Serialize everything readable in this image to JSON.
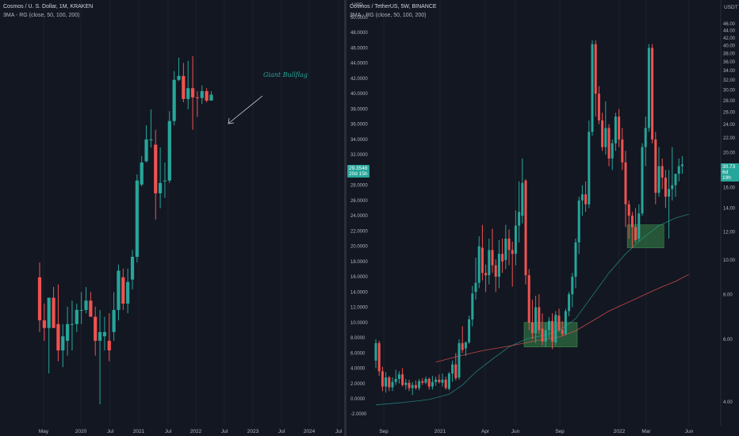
{
  "charts": [
    {
      "legend": {
        "symbol_line": "Cosmos / U. S. Dollar, 1M, KRAKEN",
        "indicator": "3MA - RG (close, 50, 100, 200)"
      },
      "annotation": "Giant Bullflag",
      "x_tick_labels": [
        "May",
        "2020",
        "Jul",
        "2021",
        "Jul",
        "2022",
        "Jul",
        "2023",
        "Jul",
        "2024",
        "Jul"
      ],
      "price_tag": {
        "price": "29.3548",
        "countdown": "20d 15h"
      }
    },
    {
      "legend": {
        "symbol_line": "Cosmos / TetherUS, 5W, BINANCE",
        "indicator": "3MA - RG (close, 50, 100, 200)"
      },
      "currency_label": "USD",
      "currency_label_right": "USDT",
      "x_tick_labels": [
        "Sep",
        "2021",
        "Apr",
        "Jun",
        "Sep",
        "2022",
        "Mar",
        "Jun"
      ],
      "y_tick_labels": [
        "-2.0000",
        "0.0000",
        "2.0000",
        "4.0000",
        "6.0000",
        "8.0000",
        "10.0000",
        "12.0000",
        "14.0000",
        "16.0000",
        "18.0000",
        "20.0000",
        "22.0000",
        "24.0000",
        "26.0000",
        "28.0000",
        "30.0000",
        "32.0000",
        "34.0000",
        "36.0000",
        "38.0000",
        "40.0000",
        "42.0000",
        "44.0000",
        "46.0000",
        "48.0000",
        "50.0000"
      ],
      "right_axis_labels": [
        "4.00",
        "6.00",
        "8.00",
        "10.00",
        "12.00",
        "14.00",
        "16.00",
        "18.00",
        "20.00",
        "22.00",
        "24.00",
        "26.00",
        "28.00",
        "30.00",
        "32.00",
        "34.00",
        "36.00",
        "38.00",
        "40.00",
        "42.00",
        "44.00",
        "46.00"
      ],
      "price_tag": {
        "price": "30.73",
        "countdown": "6d 19h"
      }
    }
  ],
  "chart_data": [
    {
      "type": "candlestick",
      "title": "Cosmos / U. S. Dollar, 1M, KRAKEN",
      "x_axis": [
        "May",
        "2020",
        "Jul",
        "2021",
        "Jul",
        "2022",
        "Jul",
        "2023",
        "Jul",
        "2024",
        "Jul"
      ],
      "y_axis": "price (USD), no scale printed",
      "annotations": [
        "Giant Bullflag",
        "arrow pointing at the 2021-2022 top"
      ],
      "colors": {
        "up": "#26a69a",
        "down": "#ef5350"
      },
      "last_price": "29.3548",
      "candles_ohlc_usd": [
        [
          4.0,
          4.7,
          2.2,
          2.5
        ],
        [
          2.5,
          3.0,
          2.0,
          2.3
        ],
        [
          2.3,
          3.2,
          1.4,
          3.2
        ],
        [
          3.2,
          3.6,
          2.3,
          2.3
        ],
        [
          2.4,
          3.7,
          1.6,
          1.8
        ],
        [
          1.8,
          2.4,
          1.5,
          2.1
        ],
        [
          2.0,
          2.9,
          1.7,
          2.4
        ],
        [
          2.4,
          3.1,
          1.8,
          2.4
        ],
        [
          2.4,
          3.0,
          2.2,
          2.8
        ],
        [
          2.8,
          3.4,
          2.4,
          2.8
        ],
        [
          2.8,
          3.6,
          2.7,
          3.1
        ],
        [
          3.1,
          3.4,
          2.6,
          2.6
        ],
        [
          2.6,
          2.9,
          1.7,
          2.0
        ],
        [
          2.0,
          2.8,
          1.0,
          2.2
        ],
        [
          2.1,
          2.6,
          1.8,
          2.2
        ],
        [
          2.0,
          2.7,
          1.6,
          1.8
        ],
        [
          2.2,
          3.4,
          2.0,
          2.8
        ],
        [
          2.8,
          4.6,
          2.5,
          4.3
        ],
        [
          4.0,
          4.4,
          2.8,
          3.0
        ],
        [
          3.0,
          4.4,
          2.7,
          3.8
        ],
        [
          3.9,
          5.4,
          3.5,
          5.0
        ],
        [
          5.0,
          12.3,
          4.7,
          11.5
        ],
        [
          11.0,
          15.0,
          10.8,
          14.0
        ],
        [
          14.2,
          21.0,
          14.0,
          18.0
        ],
        [
          18.0,
          25.0,
          16.5,
          18.0
        ],
        [
          17.0,
          20.0,
          7.5,
          10.0
        ],
        [
          10.0,
          16.5,
          8.5,
          11.2
        ],
        [
          11.5,
          14.0,
          9.5,
          11.5
        ],
        [
          11.5,
          24.5,
          11.2,
          22.0
        ],
        [
          22.0,
          38.0,
          21.0,
          34.5
        ],
        [
          34.5,
          44.0,
          34.0,
          36.0
        ],
        [
          36.0,
          41.5,
          27.0,
          28.0
        ],
        [
          28.0,
          42.5,
          25.0,
          31.5
        ],
        [
          31.5,
          44.7,
          20.0,
          28.5
        ],
        [
          28.5,
          30.5,
          23.0,
          28.3
        ],
        [
          28.3,
          32.5,
          26.5,
          30.5
        ],
        [
          30.5,
          31.5,
          27.0,
          27.5
        ],
        [
          27.5,
          30.5,
          27.5,
          29.35
        ]
      ]
    },
    {
      "type": "candlestick",
      "title": "Cosmos / TetherUS, 5W, BINANCE",
      "x_axis": [
        "Sep",
        "2021",
        "Apr",
        "Jun",
        "Sep",
        "2022",
        "Mar",
        "Jun"
      ],
      "y_axis": {
        "label": "USD",
        "range": [
          -2,
          50
        ]
      },
      "colors": {
        "up": "#26a69a",
        "down": "#ef5350",
        "ma_green": "#26a69a",
        "ma_red": "#ef5350",
        "zone": "#2e6b3f"
      },
      "annotations": [
        "green accumulation zone approx 6.8–10.0",
        "green accumulation zone approx 20.0–22.8"
      ],
      "last_price": "30.73",
      "candles_ohlc": [
        [
          5.0,
          7.8,
          4.0,
          7.3
        ],
        [
          7.3,
          7.6,
          3.0,
          3.6
        ],
        [
          3.6,
          4.2,
          1.0,
          1.6
        ],
        [
          1.6,
          3.5,
          0.8,
          2.8
        ],
        [
          2.8,
          3.0,
          1.0,
          1.5
        ],
        [
          1.5,
          2.8,
          1.0,
          2.2
        ],
        [
          2.2,
          3.8,
          1.8,
          2.6
        ],
        [
          2.6,
          3.6,
          2.0,
          3.2
        ],
        [
          3.2,
          4.0,
          1.6,
          1.8
        ],
        [
          1.8,
          2.6,
          1.2,
          2.1
        ],
        [
          2.1,
          2.5,
          1.0,
          1.4
        ],
        [
          1.4,
          2.2,
          0.5,
          1.8
        ],
        [
          1.8,
          2.4,
          1.2,
          1.4
        ],
        [
          1.4,
          2.6,
          1.1,
          2.3
        ],
        [
          2.3,
          2.7,
          1.8,
          2.1
        ],
        [
          2.1,
          2.9,
          1.9,
          2.6
        ],
        [
          2.6,
          2.8,
          1.2,
          1.6
        ],
        [
          1.6,
          3.0,
          1.2,
          2.2
        ],
        [
          2.2,
          2.9,
          1.7,
          2.5
        ],
        [
          2.5,
          3.2,
          2.0,
          2.2
        ],
        [
          2.1,
          3.3,
          1.6,
          2.5
        ],
        [
          2.5,
          2.9,
          1.2,
          1.4
        ],
        [
          1.3,
          3.5,
          1.1,
          3.3
        ],
        [
          3.3,
          5.0,
          2.2,
          4.5
        ],
        [
          4.5,
          6.0,
          2.4,
          2.7
        ],
        [
          2.8,
          7.8,
          2.5,
          7.3
        ],
        [
          7.3,
          9.5,
          6.0,
          6.4
        ],
        [
          6.6,
          7.5,
          5.6,
          7.4
        ],
        [
          7.4,
          10.9,
          7.2,
          10.4
        ],
        [
          10.4,
          14.8,
          9.5,
          13.8
        ],
        [
          14.0,
          18.5,
          13.0,
          15.2
        ],
        [
          15.2,
          21.3,
          14.5,
          20.0
        ],
        [
          19.8,
          22.8,
          15.5,
          16.5
        ],
        [
          16.5,
          17.6,
          14.0,
          16.2
        ],
        [
          16.2,
          21.0,
          15.0,
          19.5
        ],
        [
          19.5,
          22.3,
          16.5,
          17.5
        ],
        [
          17.5,
          18.3,
          14.0,
          16.0
        ],
        [
          16.0,
          20.8,
          14.5,
          19.0
        ],
        [
          19.0,
          21.0,
          16.5,
          18.0
        ],
        [
          18.2,
          22.8,
          17.0,
          21.0
        ],
        [
          21.0,
          22.2,
          17.5,
          19.5
        ],
        [
          19.5,
          20.6,
          14.7,
          19.0
        ],
        [
          19.0,
          24.7,
          17.5,
          22.7
        ],
        [
          22.7,
          28.5,
          20.5,
          24.5
        ],
        [
          24.0,
          31.5,
          23.0,
          28.3
        ],
        [
          28.6,
          28.8,
          15.0,
          16.2
        ],
        [
          16.2,
          17.0,
          9.0,
          10.0
        ],
        [
          10.0,
          13.0,
          7.8,
          8.6
        ],
        [
          8.6,
          13.5,
          7.3,
          12.0
        ],
        [
          12.0,
          13.7,
          8.5,
          9.0
        ],
        [
          9.2,
          11.2,
          7.0,
          7.5
        ],
        [
          7.5,
          10.0,
          6.8,
          9.0
        ],
        [
          9.0,
          10.7,
          8.0,
          10.2
        ],
        [
          10.2,
          11.2,
          6.5,
          7.5
        ],
        [
          7.4,
          11.5,
          7.0,
          11.0
        ],
        [
          10.9,
          11.8,
          8.8,
          9.0
        ],
        [
          9.0,
          10.2,
          8.2,
          8.5
        ],
        [
          8.5,
          11.8,
          8.3,
          11.5
        ],
        [
          11.5,
          14.0,
          10.8,
          13.7
        ],
        [
          13.7,
          16.5,
          12.0,
          16.0
        ],
        [
          16.0,
          21.0,
          14.5,
          20.5
        ],
        [
          20.5,
          26.5,
          19.0,
          26.0
        ],
        [
          26.0,
          28.0,
          24.0,
          26.8
        ],
        [
          26.8,
          28.5,
          24.5,
          25.5
        ],
        [
          25.5,
          36.5,
          25.0,
          35.0
        ],
        [
          35.0,
          47.0,
          34.5,
          46.5
        ],
        [
          46.5,
          47.0,
          37.0,
          40.0
        ],
        [
          40.0,
          41.0,
          36.0,
          36.5
        ],
        [
          36.5,
          37.5,
          32.5,
          33.0
        ],
        [
          33.0,
          39.0,
          32.0,
          35.5
        ],
        [
          35.5,
          36.0,
          30.5,
          31.5
        ],
        [
          31.5,
          34.0,
          30.0,
          33.5
        ],
        [
          33.5,
          37.5,
          32.5,
          37.0
        ],
        [
          37.0,
          38.0,
          33.0,
          34.0
        ],
        [
          34.0,
          35.5,
          30.0,
          31.0
        ],
        [
          31.0,
          32.5,
          22.5,
          25.5
        ],
        [
          25.5,
          26.0,
          21.0,
          24.0
        ],
        [
          24.0,
          24.5,
          19.8,
          22.5
        ],
        [
          22.5,
          25.0,
          20.5,
          20.8
        ],
        [
          21.0,
          25.5,
          20.6,
          24.3
        ],
        [
          24.3,
          33.5,
          24.0,
          33.0
        ],
        [
          33.0,
          37.0,
          30.5,
          35.5
        ],
        [
          35.5,
          46.5,
          35.0,
          46.0
        ],
        [
          46.0,
          46.5,
          33.5,
          34.0
        ],
        [
          34.0,
          35.0,
          25.5,
          27.0
        ],
        [
          27.0,
          33.0,
          26.5,
          30.5
        ],
        [
          30.5,
          31.5,
          27.5,
          29.0
        ],
        [
          29.0,
          30.0,
          25.0,
          26.5
        ],
        [
          26.5,
          30.0,
          21.0,
          27.5
        ],
        [
          27.5,
          33.0,
          26.0,
          28.0
        ],
        [
          28.0,
          29.0,
          26.5,
          29.5
        ],
        [
          29.5,
          31.5,
          28.5,
          30.5
        ],
        [
          30.5,
          31.8,
          29.5,
          30.73
        ]
      ],
      "ma_green": [
        [
          0,
          -0.8
        ],
        [
          8,
          -0.5
        ],
        [
          16,
          -0.1
        ],
        [
          22,
          0.6
        ],
        [
          26,
          1.8
        ],
        [
          30,
          3.5
        ],
        [
          35,
          5.2
        ],
        [
          40,
          6.8
        ],
        [
          45,
          7.8
        ],
        [
          50,
          8.3
        ],
        [
          55,
          8.9
        ],
        [
          60,
          10.5
        ],
        [
          65,
          13.5
        ],
        [
          70,
          16.5
        ],
        [
          75,
          19.0
        ],
        [
          80,
          21.0
        ],
        [
          85,
          22.7
        ],
        [
          90,
          23.7
        ],
        [
          94,
          24.2
        ]
      ],
      "ma_red": [
        [
          18,
          4.8
        ],
        [
          25,
          5.6
        ],
        [
          32,
          6.3
        ],
        [
          40,
          6.9
        ],
        [
          48,
          7.6
        ],
        [
          55,
          8.1
        ],
        [
          60,
          8.9
        ],
        [
          65,
          10.2
        ],
        [
          70,
          11.5
        ],
        [
          75,
          12.5
        ],
        [
          80,
          13.5
        ],
        [
          85,
          14.5
        ],
        [
          90,
          15.4
        ],
        [
          94,
          16.3
        ]
      ],
      "zones": [
        {
          "x0": 45,
          "x1": 60,
          "y0": 6.8,
          "y1": 10.0
        },
        {
          "x0": 76,
          "x1": 86,
          "y0": 19.8,
          "y1": 22.8
        }
      ]
    }
  ]
}
